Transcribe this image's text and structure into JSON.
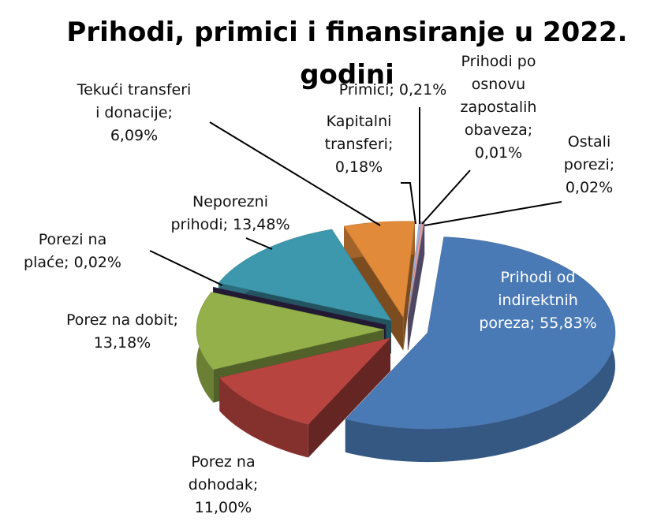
{
  "chart_data": {
    "type": "pie",
    "title": "Prihodi, primici i finansiranje u 2022. godini",
    "values": [
      55.83,
      11.0,
      13.18,
      0.02,
      13.48,
      6.09,
      0.18,
      0.21,
      0.01,
      0.02
    ],
    "value_labels": [
      "Prihodi od indirektnih poreza; 55,83%",
      "Porez na dohodak; 11,00%",
      "Porez na dobit; 13,18%",
      "Porezi na plaće; 0,02%",
      "Neporezni prihodi; 13,48%",
      "Tekući transferi i donacije; 6,09%",
      "Kapitalni transferi; 0,18%",
      "Primici; 0,21%",
      "Prihodi po osnovu zapostalih obaveza; 0,01%",
      "Ostali porezi; 0,02%"
    ],
    "colors": [
      "#4a7ab5",
      "#b84440",
      "#94b04a",
      "#3d2f5c",
      "#3d97ad",
      "#e08a3a",
      "#a0b8e0",
      "#e8a0a0",
      "#c0d890",
      "#9080b0"
    ]
  }
}
